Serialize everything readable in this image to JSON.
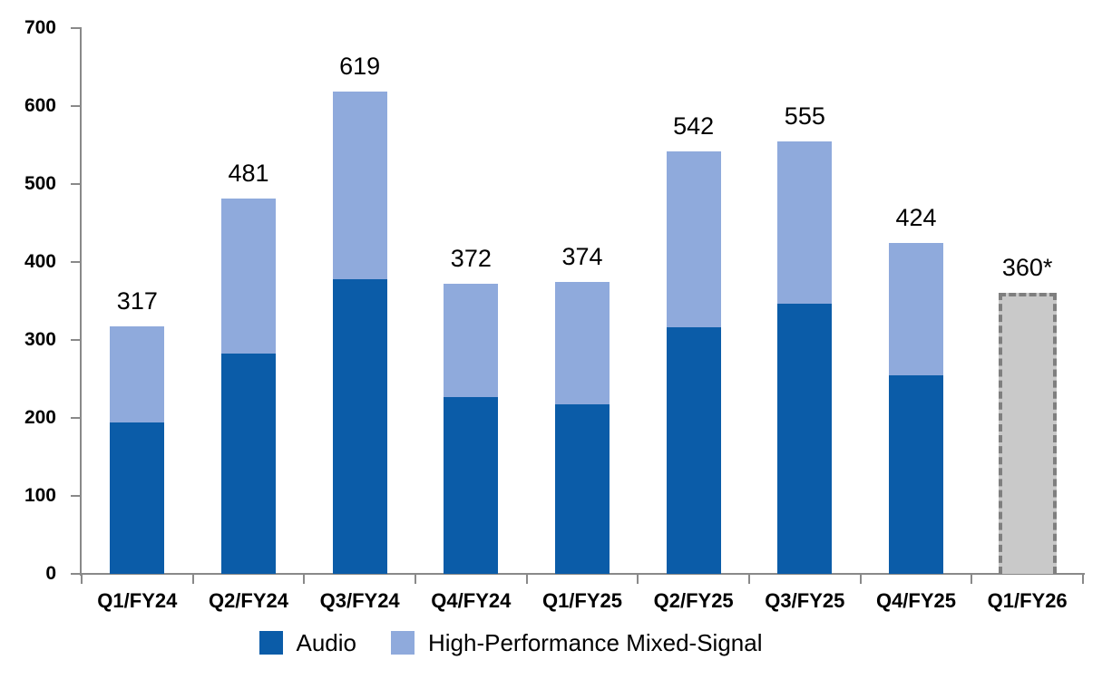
{
  "chart_data": {
    "type": "bar",
    "stacked": true,
    "title": "",
    "categories": [
      "Q1/FY24",
      "Q2/FY24",
      "Q3/FY24",
      "Q4/FY24",
      "Q1/FY25",
      "Q2/FY25",
      "Q3/FY25",
      "Q4/FY25",
      "Q1/FY26"
    ],
    "series": [
      {
        "name": "Audio",
        "color": "#0B5CA8",
        "values": [
          194,
          283,
          378,
          227,
          218,
          316,
          346,
          255,
          0
        ]
      },
      {
        "name": "High-Performance Mixed-Signal",
        "color": "#8FAADC",
        "values": [
          123,
          198,
          241,
          145,
          156,
          226,
          209,
          169,
          0
        ]
      }
    ],
    "total_labels": [
      "317",
      "481",
      "619",
      "372",
      "374",
      "542",
      "555",
      "424",
      "360*"
    ],
    "forecast": {
      "category_index": 8,
      "total": 360,
      "label": "360*",
      "fill_color": "#C9C9C9",
      "border_color": "#7F7F7F",
      "border_style": "dashed"
    },
    "ylim": [
      0,
      700
    ],
    "ytick_interval": 100,
    "yticks": [
      "0",
      "100",
      "200",
      "300",
      "400",
      "500",
      "600",
      "700"
    ],
    "grid": false,
    "legend_position": "bottom",
    "axis_color": "#898989",
    "text_color": "#000000"
  },
  "legend": {
    "items": [
      {
        "label": "Audio",
        "color": "#0B5CA8"
      },
      {
        "label": "High-Performance Mixed-Signal",
        "color": "#8FAADC"
      }
    ]
  }
}
